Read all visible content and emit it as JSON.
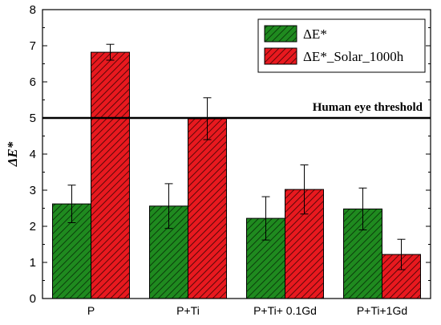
{
  "chart_data": {
    "type": "bar",
    "categories": [
      "P",
      "P+Ti",
      "P+Ti+ 0.1Gd",
      "P+Ti+1Gd"
    ],
    "series": [
      {
        "name": "ΔE*",
        "values": [
          2.62,
          2.56,
          2.22,
          2.48
        ],
        "errors": [
          0.52,
          0.62,
          0.6,
          0.58
        ],
        "color": "#1f8a1f",
        "hatch": "#0b3d0b"
      },
      {
        "name": "ΔE*_Solar_1000h",
        "values": [
          6.82,
          4.98,
          3.02,
          1.22
        ],
        "errors": [
          0.22,
          0.58,
          0.68,
          0.42
        ],
        "color": "#e8191f",
        "hatch": "#5a0808"
      }
    ],
    "ylabel": "ΔE*",
    "xlabel": "",
    "ylim": [
      0,
      8
    ],
    "yticks": [
      0,
      1,
      2,
      3,
      4,
      5,
      6,
      7,
      8
    ],
    "legend_position": "top-right",
    "threshold": {
      "value": 5,
      "label": "Human eye threshold"
    }
  }
}
